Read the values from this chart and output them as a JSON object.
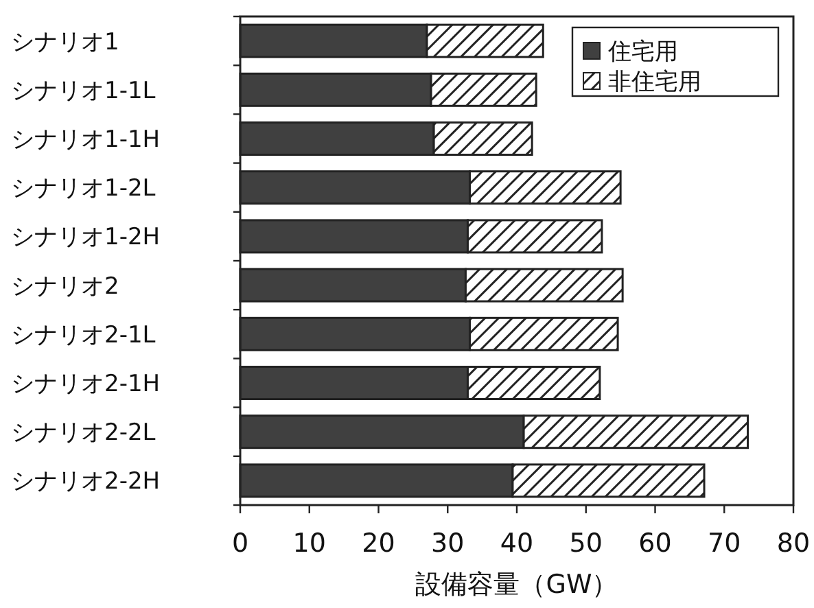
{
  "chart_data": {
    "type": "bar",
    "orientation": "horizontal",
    "stacked": true,
    "xlabel": "設備容量（GW）",
    "categories": [
      "シナリオ1",
      "シナリオ1-1L",
      "シナリオ1-1H",
      "シナリオ1-2L",
      "シナリオ1-2H",
      "シナリオ2",
      "シナリオ2-1L",
      "シナリオ2-1H",
      "シナリオ2-2L",
      "シナリオ2-2H"
    ],
    "series": [
      {
        "name": "住宅用",
        "color": "#404040",
        "values": [
          27.0,
          27.6,
          28.0,
          33.2,
          32.9,
          32.6,
          33.2,
          32.9,
          41.0,
          39.4
        ]
      },
      {
        "name": "非住宅用",
        "color": "#222222",
        "values": [
          16.8,
          15.2,
          14.2,
          21.8,
          19.4,
          22.7,
          21.4,
          19.1,
          32.4,
          27.7
        ]
      }
    ],
    "xlim": [
      0,
      80
    ],
    "xticks": [
      0,
      10,
      20,
      30,
      40,
      50,
      60,
      70,
      80
    ],
    "legend": "top right",
    "grid": false
  }
}
